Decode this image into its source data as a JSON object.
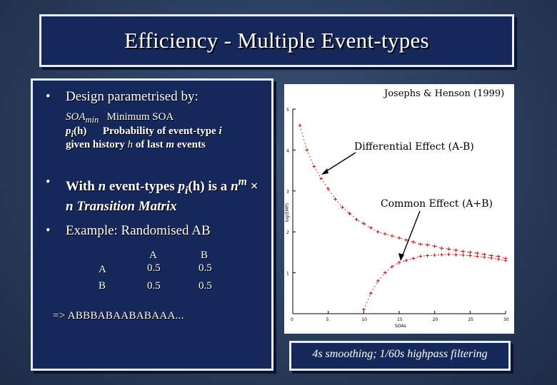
{
  "slide": {
    "title": "Efficiency - Multiple Event-types"
  },
  "left_panel": {
    "bullet1": "Design parametrised by:",
    "soa_term": "SOA",
    "soa_sub": "min",
    "soa_desc": "Minimum SOA",
    "p_term": "p",
    "p_sub": "i",
    "p_arg": "(h)",
    "p_desc": "Probability of event-type",
    "p_desc_i": "i",
    "p_desc2": "given history",
    "p_desc2_h": "h",
    "p_desc2_b": "of last",
    "p_desc2_m": "m",
    "p_desc2_c": "events",
    "bullet2_a": "With",
    "bullet2_n": "n",
    "bullet2_b": "event-types",
    "bullet2_p": "p",
    "bullet2_psub": "i",
    "bullet2_h": "(h)",
    "bullet2_c": "is a",
    "bullet2_nm": "n",
    "bullet2_msup": "m",
    "bullet2_times": "×",
    "bullet2_line2": "n Transition Matrix",
    "bullet3": "Example: Randomised AB",
    "matrix": {
      "col_headers": [
        "A",
        "B"
      ],
      "rows": [
        {
          "label": "A",
          "values": [
            "0.5",
            "0.5"
          ]
        },
        {
          "label": "B",
          "values": [
            "0.5",
            "0.5"
          ]
        }
      ]
    },
    "sequence": "=> ABBBABAABABAAA..."
  },
  "figure": {
    "source": "Josephs & Henson (1999)",
    "label_diff": "Differential Effect (A-B)",
    "label_common": "Common Effect (A+B)",
    "ylabel": "log(EMP)",
    "xlabel": "SOAs"
  },
  "caption": "4s smoothing; 1/60s highpass filtering",
  "chart_data": {
    "type": "scatter",
    "title": "",
    "xlabel": "SOAs",
    "ylabel": "log(EMP)",
    "xlim": [
      0,
      30
    ],
    "ylim": [
      0,
      5
    ],
    "x_ticks": [
      "0",
      "5",
      "10",
      "15",
      "20",
      "25",
      "30"
    ],
    "y_ticks": [
      "1",
      "2",
      "3",
      "4",
      "5"
    ],
    "grid": false,
    "series": [
      {
        "name": "Differential Effect (A-B)",
        "x": [
          1,
          2,
          3,
          4,
          5,
          6,
          7,
          8,
          9,
          10,
          11,
          12,
          13,
          14,
          15,
          16,
          17,
          18,
          19,
          20,
          21,
          22,
          23,
          24,
          25,
          26,
          27,
          28,
          29,
          30
        ],
        "y": [
          4.6,
          4.0,
          3.6,
          3.3,
          3.05,
          2.8,
          2.6,
          2.45,
          2.3,
          2.2,
          2.1,
          2.0,
          1.95,
          1.9,
          1.85,
          1.8,
          1.75,
          1.7,
          1.68,
          1.65,
          1.6,
          1.58,
          1.55,
          1.52,
          1.5,
          1.48,
          1.45,
          1.42,
          1.4,
          1.35
        ]
      },
      {
        "name": "Common Effect (A+B)",
        "x": [
          10,
          11,
          12,
          13,
          14,
          15,
          16,
          17,
          18,
          19,
          20,
          21,
          22,
          23,
          24,
          25,
          26,
          27,
          28,
          29,
          30
        ],
        "y": [
          0.1,
          0.5,
          0.8,
          1.0,
          1.15,
          1.25,
          1.3,
          1.35,
          1.4,
          1.42,
          1.43,
          1.44,
          1.45,
          1.44,
          1.43,
          1.42,
          1.4,
          1.38,
          1.36,
          1.33,
          1.3
        ]
      }
    ]
  }
}
